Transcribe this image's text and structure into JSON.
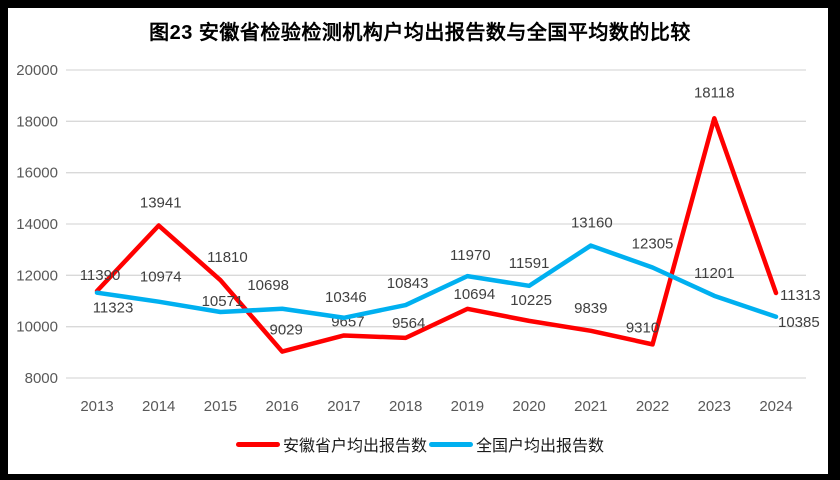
{
  "window": {
    "background": "#ffffff",
    "border_color": "#000000"
  },
  "chart_data": {
    "type": "line",
    "title": "图23 安徽省检验检测机构户均出报告数与全国平均数的比较",
    "categories": [
      "2013",
      "2014",
      "2015",
      "2016",
      "2017",
      "2018",
      "2019",
      "2020",
      "2021",
      "2022",
      "2023",
      "2024"
    ],
    "series": [
      {
        "name": "安徽省户均出报告数",
        "color": "#ff0000",
        "values": [
          11390,
          13941,
          11810,
          9029,
          9657,
          9564,
          10694,
          10225,
          9839,
          9310,
          18118,
          11313
        ]
      },
      {
        "name": "全国户均出报告数",
        "color": "#00b0f0",
        "values": [
          11323,
          10974,
          10571,
          10698,
          10346,
          10843,
          11970,
          11591,
          13160,
          12305,
          11201,
          10385
        ]
      }
    ],
    "ylim": [
      8000,
      20000
    ],
    "yticks": [
      8000,
      10000,
      12000,
      14000,
      16000,
      18000,
      20000
    ],
    "grid": "horizontal",
    "gridline_color": "#d9d9d9",
    "axis_text_color": "#595959",
    "data_label_color": "#404040",
    "data_labels_shown": true,
    "legend_position": "bottom"
  }
}
